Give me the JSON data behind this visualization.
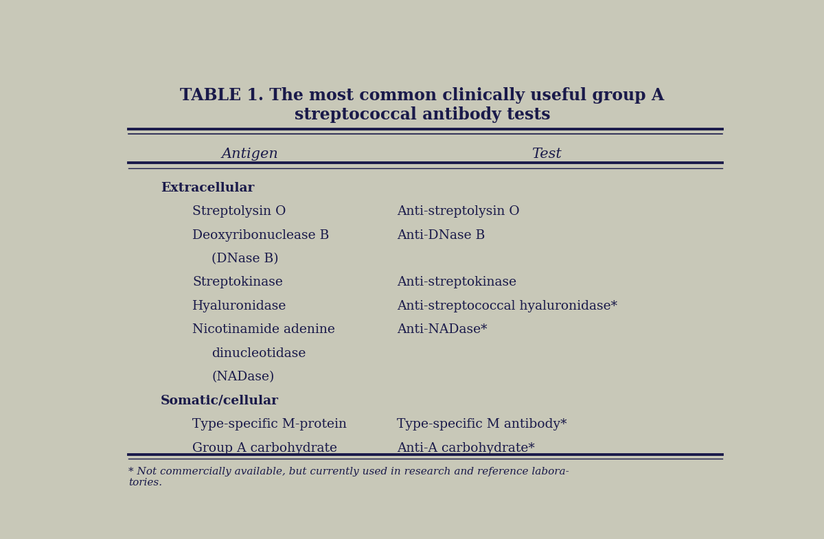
{
  "title_bold": "TABLE 1.",
  "title_rest": " The most common clinically useful group A\nstreptococcal antibody tests",
  "col_headers": [
    "Antigen",
    "Test"
  ],
  "bg_color": "#c8c8b8",
  "text_color": "#1a1a4a",
  "rows": [
    {
      "antigen": "Extracellular",
      "test": "",
      "antigen_indent": 0,
      "bold_antigen": true
    },
    {
      "antigen": "Streptolysin O",
      "test": "Anti-streptolysin O",
      "antigen_indent": 1,
      "bold_antigen": false
    },
    {
      "antigen": "Deoxyribonuclease B",
      "test": "Anti-DNase B",
      "antigen_indent": 1,
      "bold_antigen": false
    },
    {
      "antigen": "(DNase B)",
      "test": "",
      "antigen_indent": 2,
      "bold_antigen": false
    },
    {
      "antigen": "Streptokinase",
      "test": "Anti-streptokinase",
      "antigen_indent": 1,
      "bold_antigen": false
    },
    {
      "antigen": "Hyaluronidase",
      "test": "Anti-streptococcal hyaluronidase*",
      "antigen_indent": 1,
      "bold_antigen": false
    },
    {
      "antigen": "Nicotinamide adenine",
      "test": "Anti-NADase*",
      "antigen_indent": 1,
      "bold_antigen": false
    },
    {
      "antigen": "dinucleotidase",
      "test": "",
      "antigen_indent": 2,
      "bold_antigen": false
    },
    {
      "antigen": "(NADase)",
      "test": "",
      "antigen_indent": 2,
      "bold_antigen": false
    },
    {
      "antigen": "Somatic/cellular",
      "test": "",
      "antigen_indent": 0,
      "bold_antigen": true
    },
    {
      "antigen": "Type-specific M-protein",
      "test": "Type-specific M antibody*",
      "antigen_indent": 1,
      "bold_antigen": false
    },
    {
      "antigen": "Group A carbohydrate",
      "test": "Anti-A carbohydrate*",
      "antigen_indent": 1,
      "bold_antigen": false
    }
  ],
  "footnote": "* Not commercially available, but currently used in research and reference labora-\ntories.",
  "col_split": 0.42,
  "figsize": [
    12.0,
    7.85
  ],
  "dpi": 100
}
